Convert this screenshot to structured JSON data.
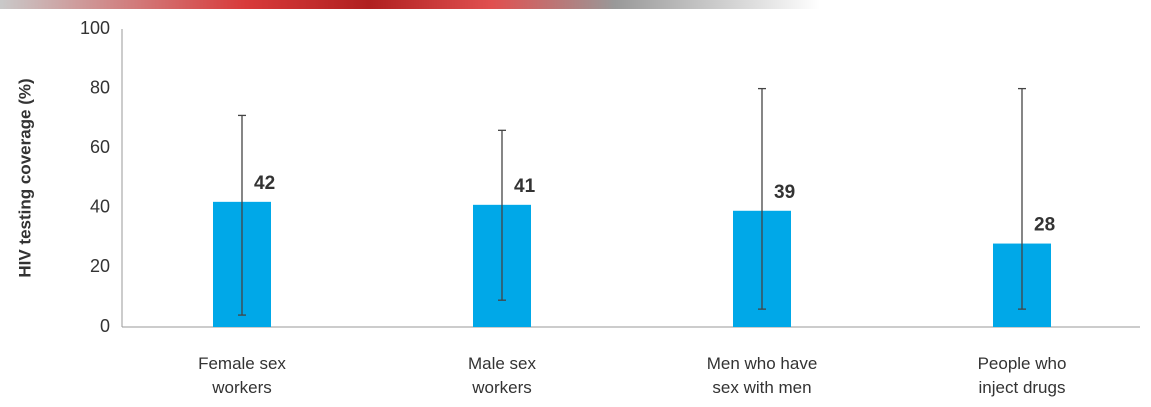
{
  "chart_data": {
    "type": "bar",
    "ylabel": "HIV testing coverage (%)",
    "categories": [
      "Female sex\nworkers",
      "Male sex\nworkers",
      "Men who have\nsex with men",
      "People who\ninject drugs"
    ],
    "values": [
      42,
      41,
      39,
      28
    ],
    "error_low": [
      4,
      9,
      6,
      6
    ],
    "error_high": [
      71,
      66,
      80,
      80
    ],
    "color": "#00a8e8",
    "ylim": [
      0,
      100
    ],
    "yticks": [
      0,
      20,
      40,
      60,
      80,
      100
    ],
    "grid": false
  }
}
